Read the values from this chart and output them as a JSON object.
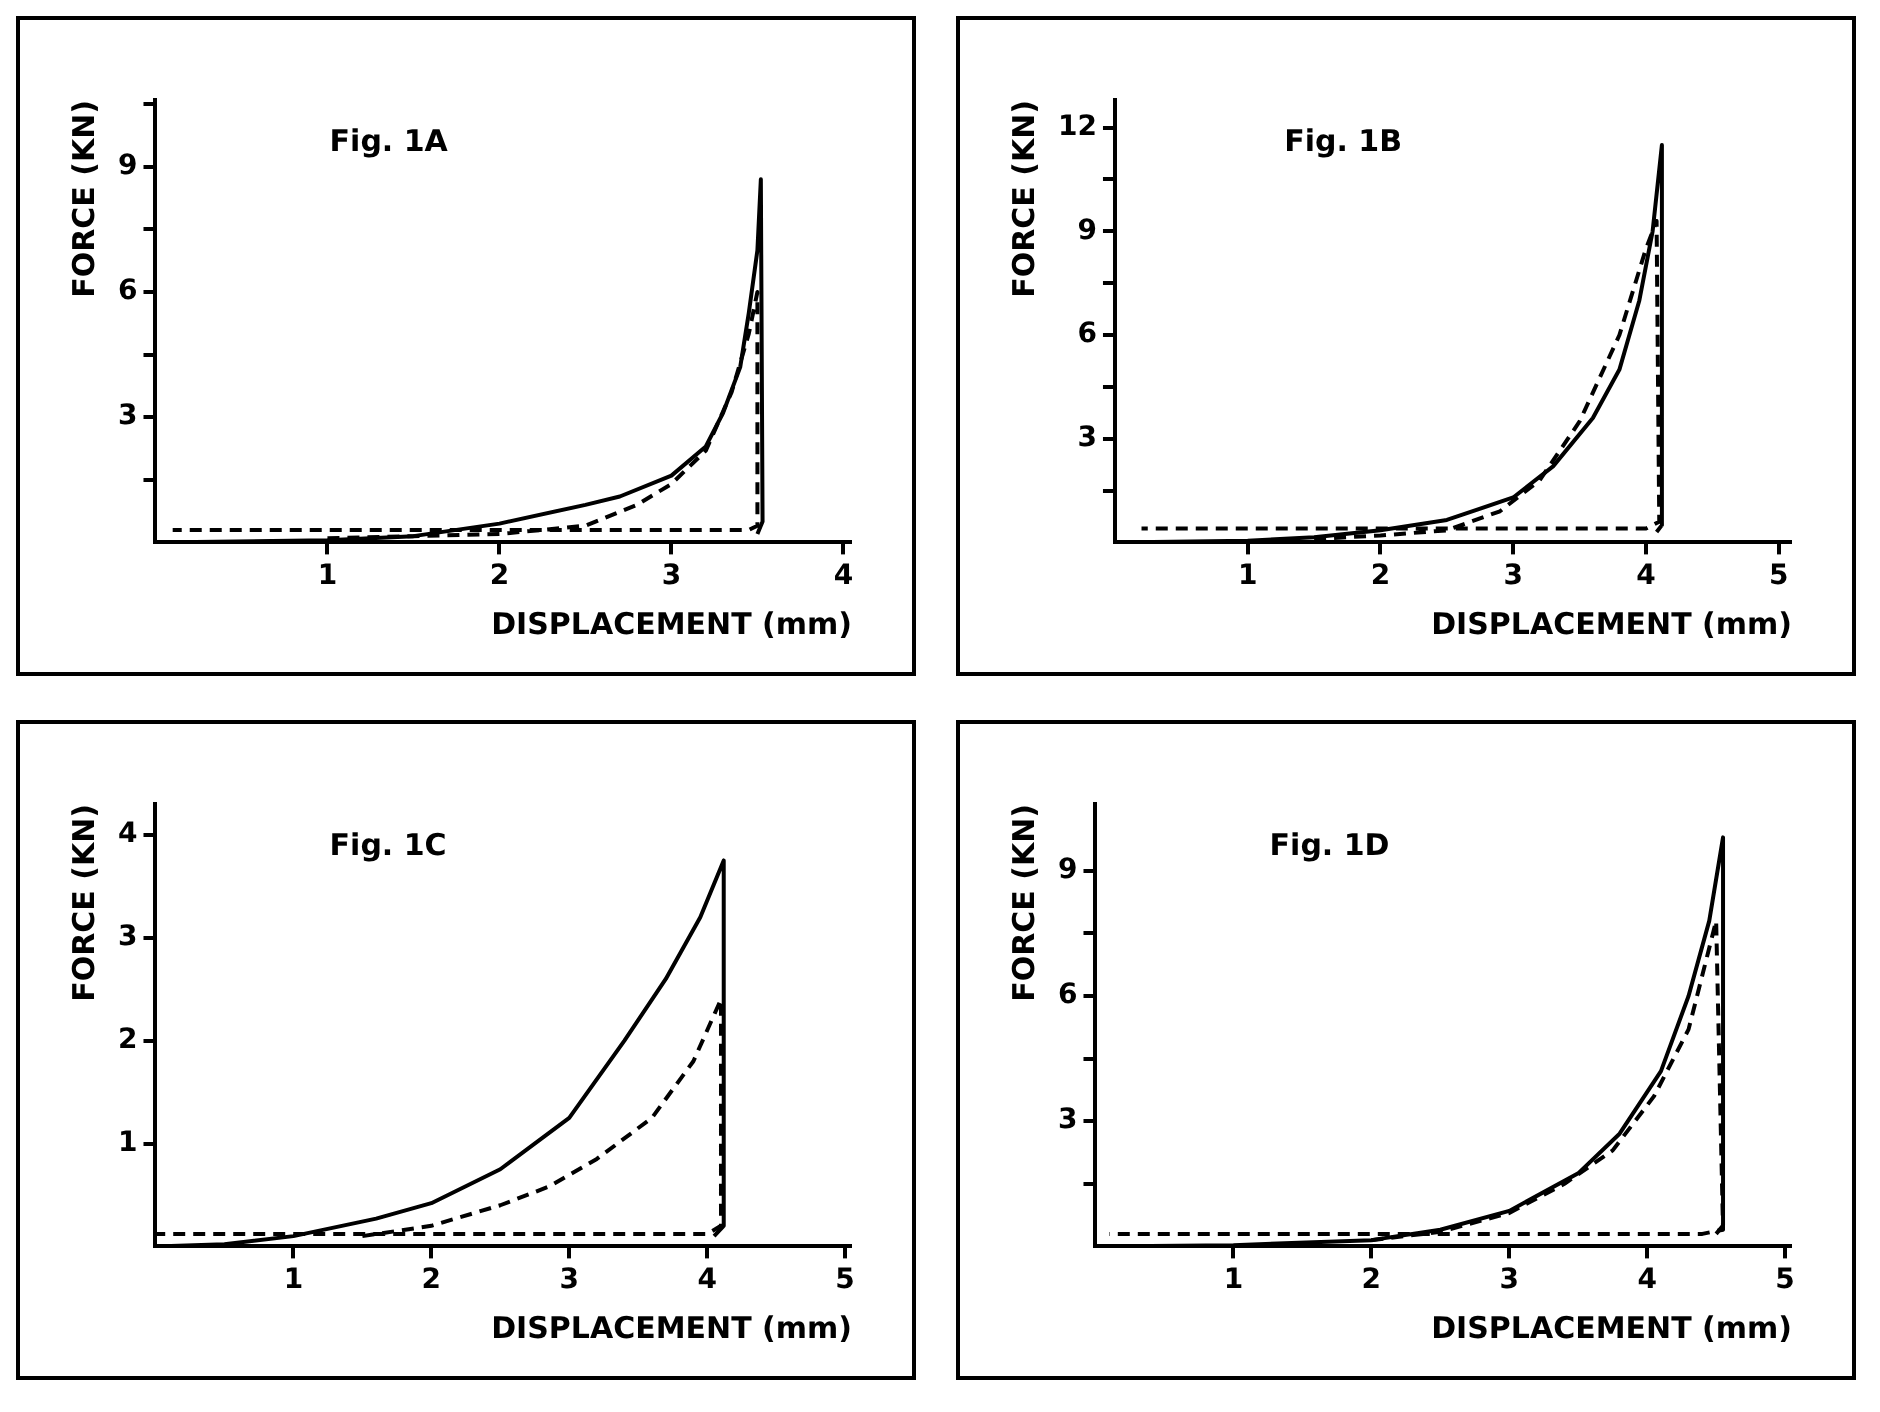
{
  "chart_data": [
    {
      "type": "line",
      "title": "Fig. 1A",
      "xlabel": "DISPLACEMENT (mm)",
      "ylabel": "FORCE (KN)",
      "xlim": [
        0,
        4.05
      ],
      "ylim": [
        0,
        10.6
      ],
      "xticks": [
        1,
        2,
        3,
        4
      ],
      "yticks": [
        {
          "value": 1.5,
          "label": null
        },
        3,
        {
          "value": 4.5,
          "label": null
        },
        6,
        {
          "value": 7.5,
          "label": null
        },
        9,
        {
          "value": 10.5,
          "label": null
        }
      ],
      "grid": false,
      "legend": false,
      "series": [
        {
          "color": "#000000",
          "line_style": "solid",
          "x": [
            0,
            1,
            1.5,
            2,
            2.5,
            2.7,
            3,
            3.2,
            3.3,
            3.4,
            3.45,
            3.5,
            3.52,
            3.53,
            3.5
          ],
          "values": [
            0,
            0.05,
            0.15,
            0.45,
            0.9,
            1.1,
            1.6,
            2.3,
            3.1,
            4.2,
            5.5,
            7,
            8.7,
            0.5,
            0.2
          ]
        },
        {
          "color": "#000000",
          "line_style": "dashed",
          "x": [
            1,
            1.5,
            2,
            2.5,
            2.8,
            3,
            3.2,
            3.35,
            3.45,
            3.5,
            3.5,
            3.45,
            0.1
          ],
          "values": [
            0.1,
            0.15,
            0.2,
            0.4,
            0.9,
            1.4,
            2.2,
            3.6,
            5,
            6,
            0.4,
            0.3,
            0.3
          ]
        }
      ]
    },
    {
      "type": "line",
      "title": "Fig. 1B",
      "xlabel": "DISPLACEMENT (mm)",
      "ylabel": "FORCE (KN)",
      "xlim": [
        0,
        5.1
      ],
      "ylim": [
        0,
        12.8
      ],
      "xticks": [
        1,
        2,
        3,
        4,
        5
      ],
      "yticks": [
        {
          "value": 1.5,
          "label": null
        },
        3,
        {
          "value": 4.5,
          "label": null
        },
        6,
        {
          "value": 7.5,
          "label": null
        },
        9,
        {
          "value": 10.5,
          "label": null
        },
        12
      ],
      "grid": false,
      "legend": false,
      "series": [
        {
          "color": "#000000",
          "line_style": "solid",
          "x": [
            0,
            1,
            1.5,
            2,
            2.5,
            3,
            3.3,
            3.6,
            3.8,
            3.95,
            4.05,
            4.12,
            4.12,
            4.08
          ],
          "values": [
            0,
            0.05,
            0.15,
            0.35,
            0.65,
            1.3,
            2.2,
            3.6,
            5,
            7,
            9,
            11.5,
            0.5,
            0.3
          ]
        },
        {
          "color": "#000000",
          "line_style": "dashed",
          "x": [
            1.5,
            2,
            2.5,
            2.9,
            3.2,
            3.5,
            3.8,
            4,
            4.08,
            4.1,
            4,
            0.2
          ],
          "values": [
            0.1,
            0.2,
            0.35,
            0.9,
            1.8,
            3.5,
            6,
            8.5,
            9.3,
            0.6,
            0.4,
            0.4
          ]
        }
      ]
    },
    {
      "type": "line",
      "title": "Fig. 1C",
      "xlabel": "DISPLACEMENT (mm)",
      "ylabel": "FORCE (KN)",
      "xlim": [
        0,
        5.05
      ],
      "ylim": [
        0,
        4.3
      ],
      "xticks": [
        1,
        2,
        3,
        4,
        5
      ],
      "yticks": [
        1,
        2,
        3,
        4
      ],
      "grid": false,
      "legend": false,
      "series": [
        {
          "color": "#000000",
          "line_style": "solid",
          "x": [
            0,
            0.5,
            1,
            1.6,
            2,
            2.5,
            3,
            3.4,
            3.7,
            3.95,
            4.12,
            4.12,
            4.05
          ],
          "values": [
            0,
            0.02,
            0.1,
            0.27,
            0.42,
            0.75,
            1.25,
            2,
            2.6,
            3.2,
            3.75,
            0.2,
            0.1
          ]
        },
        {
          "color": "#000000",
          "line_style": "dashed",
          "x": [
            1.5,
            2,
            2.5,
            2.85,
            3.2,
            3.6,
            3.9,
            4.1,
            4.1,
            4,
            0
          ],
          "values": [
            0.1,
            0.2,
            0.4,
            0.58,
            0.85,
            1.25,
            1.8,
            2.4,
            0.2,
            0.12,
            0.12
          ]
        }
      ]
    },
    {
      "type": "line",
      "title": "Fig. 1D",
      "xlabel": "DISPLACEMENT (mm)",
      "ylabel": "FORCE (KN)",
      "xlim": [
        0,
        5.05
      ],
      "ylim": [
        0,
        10.6
      ],
      "xticks": [
        1,
        2,
        3,
        4,
        5
      ],
      "yticks": [
        {
          "value": 1.5,
          "label": null
        },
        3,
        {
          "value": 4.5,
          "label": null
        },
        6,
        {
          "value": 7.5,
          "label": null
        },
        9
      ],
      "grid": false,
      "legend": false,
      "series": [
        {
          "color": "#000000",
          "line_style": "solid",
          "x": [
            0,
            1,
            2,
            2.5,
            3,
            3.5,
            3.8,
            4.1,
            4.3,
            4.45,
            4.55,
            4.55,
            4.5
          ],
          "values": [
            0,
            0.03,
            0.15,
            0.4,
            0.85,
            1.75,
            2.7,
            4.2,
            6,
            7.8,
            9.8,
            0.5,
            0.3
          ]
        },
        {
          "color": "#000000",
          "line_style": "dashed",
          "x": [
            2,
            2.5,
            3,
            3.4,
            3.75,
            4.05,
            4.3,
            4.5,
            4.55,
            4.4,
            0.1
          ],
          "values": [
            0.15,
            0.35,
            0.8,
            1.5,
            2.3,
            3.6,
            5.2,
            7.8,
            0.4,
            0.3,
            0.3
          ]
        }
      ]
    }
  ]
}
